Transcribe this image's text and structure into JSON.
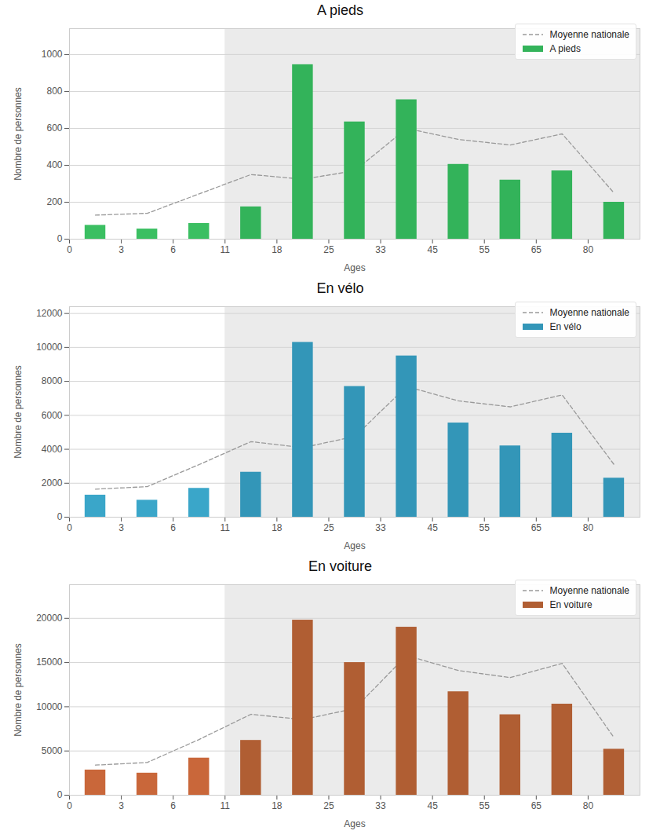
{
  "chart_data": [
    {
      "type": "bar",
      "title": "A pieds",
      "x_label": "Ages",
      "y_label": "Nombre de personnes",
      "bins": [
        0,
        3,
        6,
        11,
        18,
        25,
        33,
        45,
        55,
        65,
        80,
        null
      ],
      "highlight_from": 11,
      "ylim": [
        0,
        1140
      ],
      "yticks": [
        0,
        200,
        400,
        600,
        800,
        1000
      ],
      "grid": true,
      "legend": "upper right",
      "series": [
        {
          "name": "Moyenne nationale",
          "type": "line",
          "line_style": "dashed",
          "color": "#999999",
          "values": [
            130,
            140,
            245,
            350,
            325,
            370,
            600,
            540,
            510,
            570,
            250
          ]
        },
        {
          "name": "A pieds",
          "type": "bar",
          "colors": [
            "#3bbf62",
            "#3bbf62",
            "#3bbf62",
            "#33b35a",
            "#33b35a",
            "#33b35a",
            "#33b35a",
            "#33b35a",
            "#33b35a",
            "#33b35a",
            "#33b35a"
          ],
          "values": [
            75,
            55,
            85,
            175,
            945,
            635,
            755,
            405,
            320,
            370,
            200
          ]
        }
      ]
    },
    {
      "type": "bar",
      "title": "En vélo",
      "x_label": "Ages",
      "y_label": "Nombre de personnes",
      "bins": [
        0,
        3,
        6,
        11,
        18,
        25,
        33,
        45,
        55,
        65,
        80,
        null
      ],
      "highlight_from": 11,
      "ylim": [
        0,
        12400
      ],
      "yticks": [
        0,
        2000,
        4000,
        6000,
        8000,
        10000,
        12000
      ],
      "grid": true,
      "legend": "upper right",
      "series": [
        {
          "name": "Moyenne nationale",
          "type": "line",
          "line_style": "dashed",
          "color": "#999999",
          "values": [
            1650,
            1800,
            3100,
            4450,
            4100,
            4750,
            7700,
            6850,
            6500,
            7200,
            3100
          ]
        },
        {
          "name": "En vélo",
          "type": "bar",
          "colors": [
            "#3aa6c9",
            "#3aa6c9",
            "#3aa6c9",
            "#3396b8",
            "#3396b8",
            "#3396b8",
            "#3396b8",
            "#3396b8",
            "#3396b8",
            "#3396b8",
            "#3396b8"
          ],
          "values": [
            1300,
            1000,
            1700,
            2650,
            10300,
            7700,
            9500,
            5550,
            4200,
            4950,
            2300
          ]
        }
      ]
    },
    {
      "type": "bar",
      "title": "En voiture",
      "x_label": "Ages",
      "y_label": "Nombre de personnes",
      "bins": [
        0,
        3,
        6,
        11,
        18,
        25,
        33,
        45,
        55,
        65,
        80,
        null
      ],
      "highlight_from": 11,
      "ylim": [
        0,
        23800
      ],
      "yticks": [
        0,
        5000,
        10000,
        15000,
        20000
      ],
      "grid": true,
      "legend": "upper right",
      "series": [
        {
          "name": "Moyenne nationale",
          "type": "line",
          "line_style": "dashed",
          "color": "#999999",
          "values": [
            3400,
            3700,
            6300,
            9150,
            8550,
            9800,
            15800,
            14100,
            13300,
            14900,
            6500
          ]
        },
        {
          "name": "En voiture",
          "type": "bar",
          "colors": [
            "#c9673a",
            "#c9673a",
            "#c9673a",
            "#b05e33",
            "#b05e33",
            "#b05e33",
            "#b05e33",
            "#b05e33",
            "#b05e33",
            "#b05e33",
            "#b05e33"
          ],
          "values": [
            2850,
            2500,
            4200,
            6200,
            19800,
            15000,
            19000,
            11700,
            9100,
            10300,
            5200
          ]
        }
      ]
    }
  ]
}
